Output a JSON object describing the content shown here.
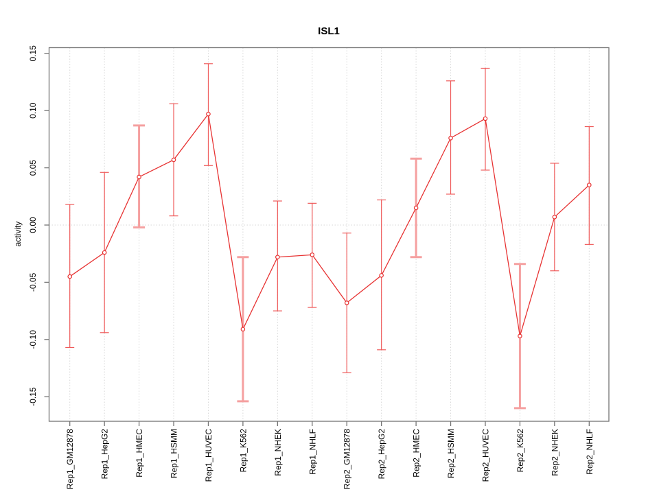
{
  "title": "ISL1",
  "chart_data": {
    "type": "line",
    "title": "ISL1",
    "xlabel": "",
    "ylabel": "activity",
    "ylim": [
      -0.17,
      0.155
    ],
    "yticks": [
      0.15,
      0.1,
      0.05,
      0.0,
      -0.05,
      -0.1,
      -0.15
    ],
    "ytick_labels": [
      "0.15",
      "0.10",
      "0.05",
      "0.00",
      "-0.05",
      "-0.10",
      "-0.15"
    ],
    "grid": "dotted vertical gridline at every category; dotted horizontal line at y=0",
    "legend": "none",
    "categories": [
      "Rep1_GM12878",
      "Rep1_HepG2",
      "Rep1_HMEC",
      "Rep1_HSMM",
      "Rep1_HUVEC",
      "Rep1_K562",
      "Rep1_NHEK",
      "Rep1_NHLF",
      "Rep2_GM12878",
      "Rep2_HepG2",
      "Rep2_HMEC",
      "Rep2_HSMM",
      "Rep2_HUVEC",
      "Rep2_K562",
      "Rep2_NHEK",
      "Rep2_NHLF"
    ],
    "series": [
      {
        "name": "activity",
        "marker": "open-circle",
        "values": [
          -0.045,
          -0.024,
          0.042,
          0.057,
          0.097,
          -0.091,
          -0.028,
          -0.026,
          -0.068,
          -0.044,
          0.015,
          0.076,
          0.093,
          -0.097,
          0.007,
          0.035
        ],
        "ci_high": [
          0.018,
          0.046,
          0.087,
          0.106,
          0.141,
          -0.028,
          0.021,
          0.019,
          -0.007,
          0.022,
          0.058,
          0.126,
          0.137,
          -0.034,
          0.054,
          0.086
        ],
        "ci_low": [
          -0.107,
          -0.094,
          -0.002,
          0.008,
          0.052,
          -0.154,
          -0.075,
          -0.072,
          -0.129,
          -0.109,
          -0.028,
          0.027,
          0.048,
          -0.16,
          -0.04,
          -0.017
        ],
        "bold_error_bar": [
          false,
          false,
          true,
          false,
          false,
          true,
          false,
          false,
          false,
          false,
          true,
          false,
          false,
          true,
          false,
          false
        ]
      }
    ],
    "colors": {
      "line": "#e73333",
      "point": "#e73333",
      "error_bar": "#ef5a5a",
      "error_bar_bold": "#f5a0a0",
      "grid": "#d7d7d7",
      "axis": "#737373",
      "text": "#000000"
    }
  }
}
